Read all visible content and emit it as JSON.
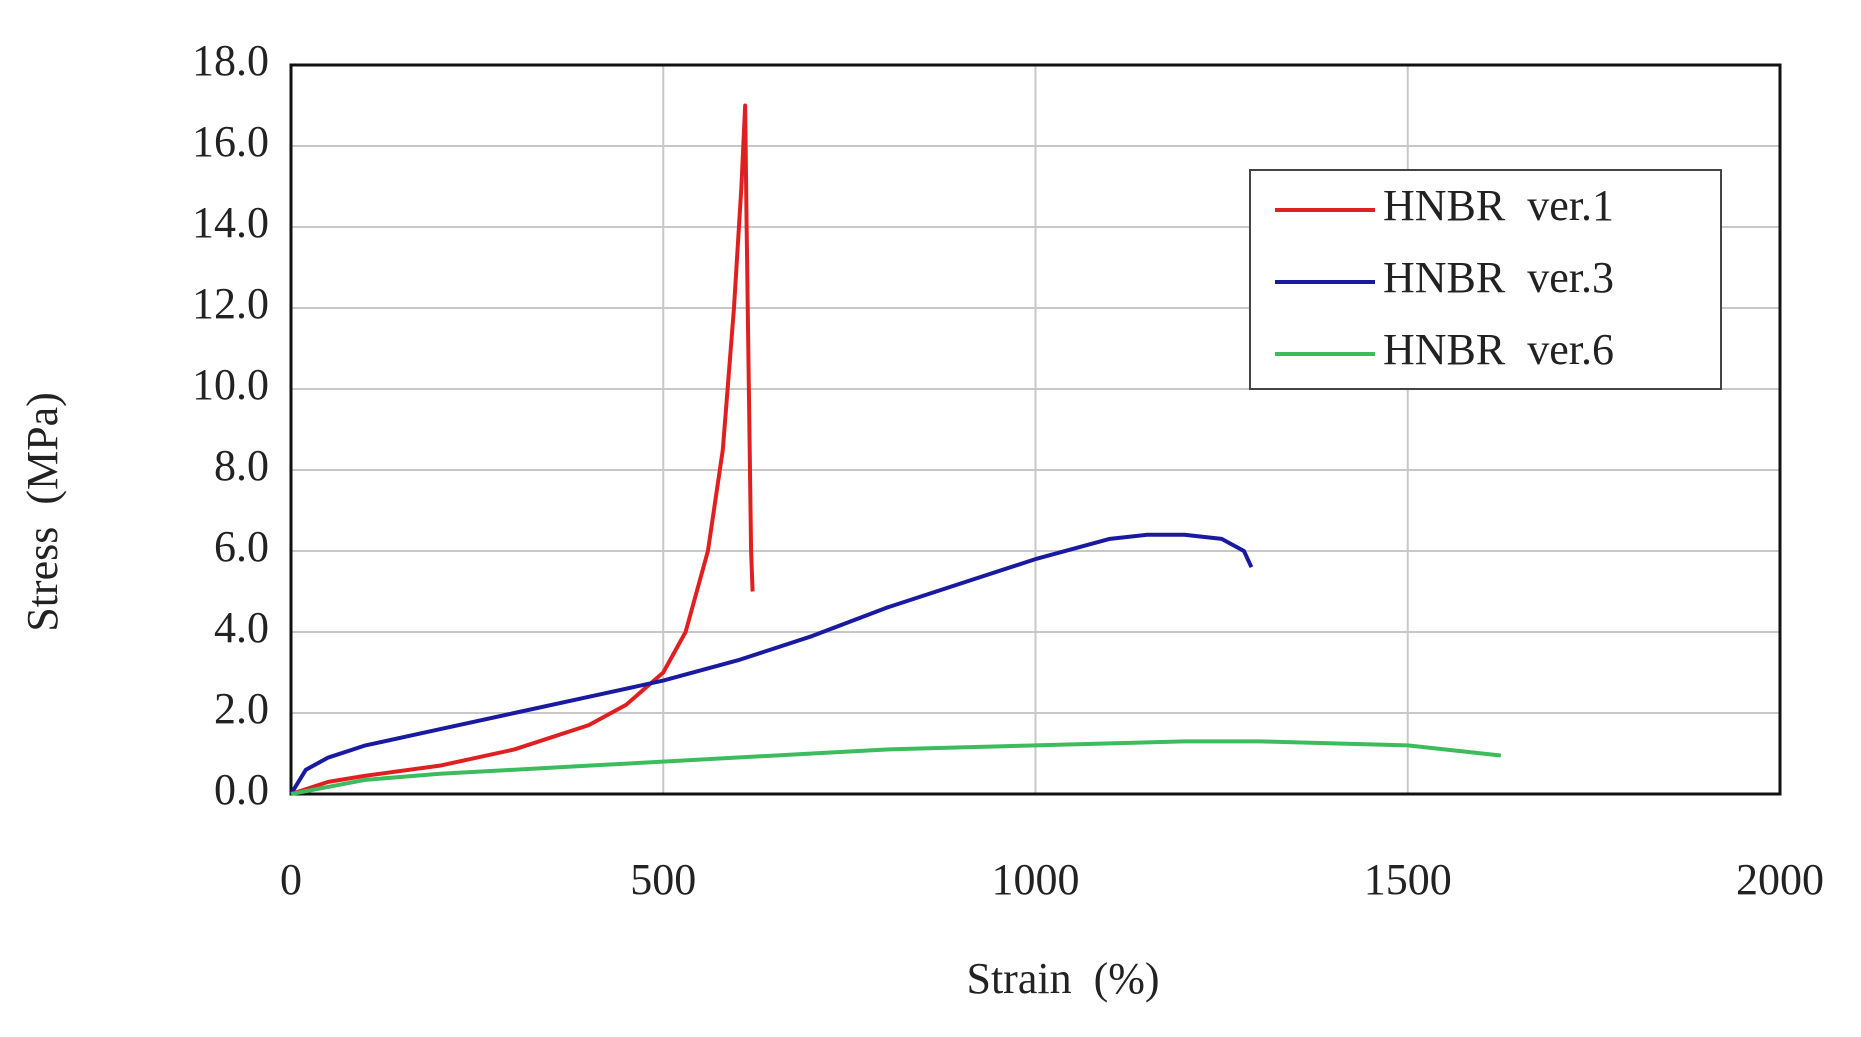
{
  "chart_data": {
    "type": "line",
    "xlabel": "Strain  (%)",
    "ylabel": "Stress  (MPa)",
    "xlim": [
      0,
      2000
    ],
    "xticks": [
      0,
      500,
      1000,
      1500,
      2000
    ],
    "ylim": [
      0,
      18
    ],
    "yticks": [
      {
        "value": 0,
        "label": "0.0"
      },
      {
        "value": 2,
        "label": "2.0"
      },
      {
        "value": 4,
        "label": "4.0"
      },
      {
        "value": 6,
        "label": "6.0"
      },
      {
        "value": 8,
        "label": "8.0"
      },
      {
        "value": 10,
        "label": "10.0"
      },
      {
        "value": 12,
        "label": "12.0"
      },
      {
        "value": 14,
        "label": "14.0"
      },
      {
        "value": 16,
        "label": "16.0"
      },
      {
        "value": 18,
        "label": "18.0"
      }
    ],
    "grid": true,
    "legend": "upper right",
    "series": [
      {
        "name": "HNBR  ver.1",
        "color": "#e02020",
        "x": [
          0,
          50,
          100,
          200,
          300,
          400,
          450,
          500,
          530,
          560,
          580,
          595,
          605,
          610,
          612,
          615,
          618,
          620
        ],
        "values": [
          0,
          0.3,
          0.45,
          0.7,
          1.1,
          1.7,
          2.2,
          3.0,
          4.0,
          6.0,
          8.5,
          12,
          15,
          17.0,
          14,
          10,
          6,
          5.0
        ]
      },
      {
        "name": "HNBR  ver.3",
        "color": "#1a1aa0",
        "x": [
          0,
          20,
          50,
          100,
          200,
          300,
          400,
          500,
          600,
          700,
          800,
          900,
          1000,
          1100,
          1150,
          1200,
          1250,
          1280,
          1290
        ],
        "values": [
          0,
          0.6,
          0.9,
          1.2,
          1.6,
          2.0,
          2.4,
          2.8,
          3.3,
          3.9,
          4.6,
          5.2,
          5.8,
          6.3,
          6.4,
          6.4,
          6.3,
          6.0,
          5.6
        ]
      },
      {
        "name": "HNBR  ver.6",
        "color": "#3cbc5c",
        "x": [
          0,
          100,
          200,
          300,
          400,
          500,
          600,
          700,
          800,
          900,
          1000,
          1100,
          1200,
          1300,
          1400,
          1500,
          1600,
          1625
        ],
        "values": [
          0,
          0.35,
          0.5,
          0.6,
          0.7,
          0.8,
          0.9,
          1.0,
          1.1,
          1.15,
          1.2,
          1.25,
          1.3,
          1.3,
          1.25,
          1.2,
          1.0,
          0.95
        ]
      }
    ]
  }
}
